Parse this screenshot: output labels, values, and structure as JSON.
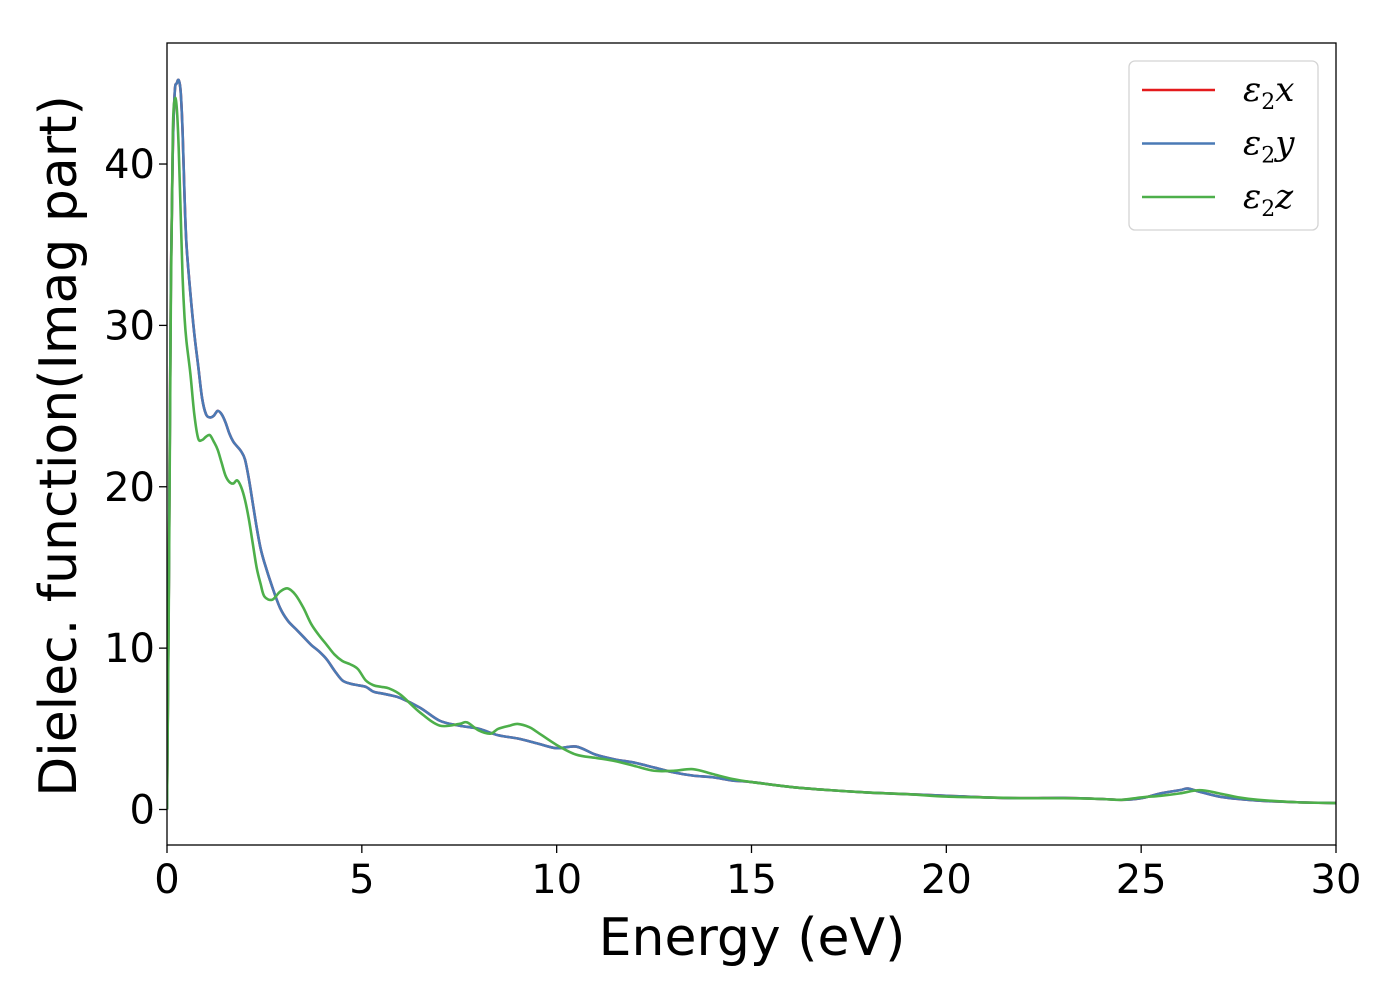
{
  "chart_data": {
    "type": "line",
    "title": "",
    "xlabel": "Energy (eV)",
    "ylabel": "Dielec. function(Imag part)",
    "xlim": [
      0,
      30
    ],
    "ylim": [
      -2.2,
      47.5
    ],
    "x_ticks": [
      0,
      5,
      10,
      15,
      20,
      25,
      30
    ],
    "y_ticks": [
      0,
      10,
      20,
      30,
      40
    ],
    "grid": false,
    "legend_position": "top-right",
    "series": [
      {
        "name": "ε2x",
        "legend_symbol": "ε",
        "legend_subscript": "2",
        "legend_suffix": "x",
        "color": "#e41a1c",
        "x": [
          0,
          0.05,
          0.1,
          0.15,
          0.2,
          0.25,
          0.3,
          0.35,
          0.4,
          0.45,
          0.5,
          0.6,
          0.7,
          0.8,
          0.9,
          1.0,
          1.1,
          1.2,
          1.3,
          1.4,
          1.5,
          1.6,
          1.7,
          1.8,
          1.9,
          2.0,
          2.1,
          2.2,
          2.3,
          2.4,
          2.5,
          2.7,
          2.9,
          3.1,
          3.3,
          3.5,
          3.7,
          3.9,
          4.1,
          4.3,
          4.5,
          4.7,
          4.9,
          5.1,
          5.3,
          5.5,
          5.7,
          6.0,
          6.5,
          7.0,
          7.5,
          8.0,
          8.5,
          9.0,
          9.5,
          10.0,
          10.5,
          11.0,
          11.5,
          12.0,
          12.5,
          13.0,
          13.5,
          14.0,
          14.5,
          15.0,
          16.0,
          17.0,
          18.0,
          19.0,
          20.0,
          21.0,
          22.0,
          23.0,
          24.0,
          24.5,
          25.0,
          25.5,
          26.0,
          26.2,
          26.5,
          27.0,
          27.5,
          28.0,
          29.0,
          30.0
        ],
        "y": [
          0,
          15,
          33,
          41,
          44.5,
          45,
          45.2,
          44.5,
          42,
          38,
          35,
          32,
          29.5,
          27.5,
          25.5,
          24.5,
          24.3,
          24.4,
          24.7,
          24.5,
          24.0,
          23.3,
          22.8,
          22.5,
          22.2,
          21.7,
          20.5,
          19.0,
          17.5,
          16.2,
          15.3,
          13.8,
          12.5,
          11.7,
          11.2,
          10.7,
          10.2,
          9.8,
          9.3,
          8.6,
          8.0,
          7.8,
          7.7,
          7.6,
          7.3,
          7.2,
          7.1,
          6.9,
          6.3,
          5.5,
          5.2,
          5.0,
          4.6,
          4.4,
          4.1,
          3.8,
          3.9,
          3.4,
          3.1,
          2.9,
          2.6,
          2.3,
          2.1,
          2.0,
          1.8,
          1.7,
          1.4,
          1.2,
          1.05,
          0.95,
          0.85,
          0.75,
          0.7,
          0.72,
          0.65,
          0.6,
          0.7,
          1.0,
          1.2,
          1.3,
          1.1,
          0.8,
          0.65,
          0.55,
          0.45,
          0.4
        ]
      },
      {
        "name": "ε2y",
        "legend_symbol": "ε",
        "legend_subscript": "2",
        "legend_suffix": "y",
        "color": "#4a7ab5",
        "x": [
          0,
          0.05,
          0.1,
          0.15,
          0.2,
          0.25,
          0.3,
          0.35,
          0.4,
          0.45,
          0.5,
          0.6,
          0.7,
          0.8,
          0.9,
          1.0,
          1.1,
          1.2,
          1.3,
          1.4,
          1.5,
          1.6,
          1.7,
          1.8,
          1.9,
          2.0,
          2.1,
          2.2,
          2.3,
          2.4,
          2.5,
          2.7,
          2.9,
          3.1,
          3.3,
          3.5,
          3.7,
          3.9,
          4.1,
          4.3,
          4.5,
          4.7,
          4.9,
          5.1,
          5.3,
          5.5,
          5.7,
          6.0,
          6.5,
          7.0,
          7.5,
          8.0,
          8.5,
          9.0,
          9.5,
          10.0,
          10.5,
          11.0,
          11.5,
          12.0,
          12.5,
          13.0,
          13.5,
          14.0,
          14.5,
          15.0,
          16.0,
          17.0,
          18.0,
          19.0,
          20.0,
          21.0,
          22.0,
          23.0,
          24.0,
          24.5,
          25.0,
          25.5,
          26.0,
          26.2,
          26.5,
          27.0,
          27.5,
          28.0,
          29.0,
          30.0
        ],
        "y": [
          0,
          15,
          33,
          41,
          44.5,
          45,
          45.2,
          44.5,
          42,
          38,
          35,
          32,
          29.5,
          27.5,
          25.5,
          24.5,
          24.3,
          24.4,
          24.7,
          24.5,
          24.0,
          23.3,
          22.8,
          22.5,
          22.2,
          21.7,
          20.5,
          19.0,
          17.5,
          16.2,
          15.3,
          13.8,
          12.5,
          11.7,
          11.2,
          10.7,
          10.2,
          9.8,
          9.3,
          8.6,
          8.0,
          7.8,
          7.7,
          7.6,
          7.3,
          7.2,
          7.1,
          6.9,
          6.3,
          5.5,
          5.2,
          5.0,
          4.6,
          4.4,
          4.1,
          3.8,
          3.9,
          3.4,
          3.1,
          2.9,
          2.6,
          2.3,
          2.1,
          2.0,
          1.8,
          1.7,
          1.4,
          1.2,
          1.05,
          0.95,
          0.85,
          0.75,
          0.7,
          0.72,
          0.65,
          0.6,
          0.7,
          1.0,
          1.2,
          1.3,
          1.1,
          0.8,
          0.65,
          0.55,
          0.45,
          0.4
        ]
      },
      {
        "name": "ε2z",
        "legend_symbol": "ε",
        "legend_subscript": "2",
        "legend_suffix": "z",
        "color": "#4daf4a",
        "x": [
          0,
          0.05,
          0.1,
          0.15,
          0.2,
          0.25,
          0.3,
          0.35,
          0.4,
          0.45,
          0.5,
          0.6,
          0.7,
          0.8,
          0.9,
          1.0,
          1.1,
          1.2,
          1.3,
          1.4,
          1.5,
          1.6,
          1.7,
          1.8,
          1.9,
          2.0,
          2.1,
          2.2,
          2.3,
          2.4,
          2.5,
          2.7,
          2.9,
          3.1,
          3.3,
          3.5,
          3.7,
          3.9,
          4.1,
          4.3,
          4.5,
          4.7,
          4.9,
          5.1,
          5.3,
          5.5,
          5.7,
          6.0,
          6.5,
          7.0,
          7.5,
          7.7,
          8.0,
          8.3,
          8.5,
          8.8,
          9.0,
          9.3,
          9.5,
          10.0,
          10.5,
          11.0,
          11.5,
          12.0,
          12.5,
          13.0,
          13.5,
          14.0,
          14.5,
          15.0,
          16.0,
          17.0,
          18.0,
          19.0,
          20.0,
          21.0,
          22.0,
          23.0,
          24.0,
          24.5,
          25.0,
          25.5,
          26.0,
          26.5,
          27.0,
          27.5,
          28.0,
          29.0,
          30.0
        ],
        "y": [
          0,
          14,
          32,
          42,
          44.0,
          43.5,
          41,
          37,
          33,
          30.5,
          29,
          27,
          24.5,
          23.0,
          22.9,
          23.1,
          23.2,
          22.8,
          22.3,
          21.5,
          20.7,
          20.3,
          20.2,
          20.4,
          20.0,
          19.2,
          18.0,
          16.5,
          15.0,
          14.0,
          13.2,
          13.0,
          13.5,
          13.7,
          13.3,
          12.5,
          11.5,
          10.8,
          10.2,
          9.6,
          9.2,
          9.0,
          8.7,
          8.0,
          7.7,
          7.6,
          7.5,
          7.1,
          6.0,
          5.2,
          5.3,
          5.4,
          4.9,
          4.7,
          5.0,
          5.2,
          5.3,
          5.1,
          4.8,
          4.0,
          3.4,
          3.2,
          3.0,
          2.7,
          2.4,
          2.4,
          2.5,
          2.2,
          1.9,
          1.7,
          1.4,
          1.2,
          1.05,
          0.95,
          0.8,
          0.75,
          0.7,
          0.7,
          0.65,
          0.6,
          0.75,
          0.85,
          1.0,
          1.2,
          1.0,
          0.75,
          0.6,
          0.45,
          0.4
        ]
      }
    ]
  }
}
